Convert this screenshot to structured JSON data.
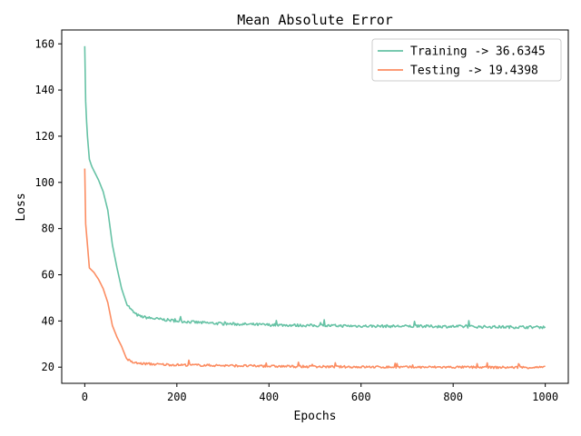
{
  "chart_data": {
    "type": "line",
    "title": "Mean Absolute Error",
    "xlabel": "Epochs",
    "ylabel": "Loss",
    "xlim": [
      -50,
      1050
    ],
    "ylim": [
      13,
      166
    ],
    "xticks": [
      0,
      200,
      400,
      600,
      800,
      1000
    ],
    "yticks": [
      20,
      40,
      60,
      80,
      100,
      120,
      140,
      160
    ],
    "grid": false,
    "legend_position": "top-right",
    "series": [
      {
        "name": "Training -> 36.6345",
        "color": "#66c2a5",
        "noise": 0.6,
        "x": [
          0,
          2,
          5,
          10,
          15,
          20,
          30,
          40,
          50,
          60,
          70,
          80,
          90,
          100,
          110,
          120,
          140,
          160,
          200,
          250,
          300,
          400,
          500,
          600,
          700,
          800,
          900,
          1000
        ],
        "y": [
          159,
          135,
          122,
          110,
          107,
          105,
          101,
          96,
          88,
          73,
          63,
          54,
          48,
          45,
          43,
          42,
          41.3,
          40.8,
          40.0,
          39.3,
          38.8,
          38.3,
          38.0,
          37.8,
          37.7,
          37.6,
          37.4,
          37.3
        ]
      },
      {
        "name": "Testing -> 19.4398",
        "color": "#fc8d62",
        "noise": 0.5,
        "x": [
          0,
          2,
          5,
          10,
          15,
          20,
          30,
          40,
          50,
          60,
          70,
          80,
          90,
          100,
          110,
          120,
          140,
          160,
          200,
          300,
          400,
          500,
          600,
          700,
          800,
          900,
          1000
        ],
        "y": [
          106,
          82,
          75,
          63,
          62,
          61,
          58,
          54,
          48,
          38,
          33,
          29,
          24,
          22.3,
          21.8,
          21.6,
          21.4,
          21.2,
          21.0,
          20.7,
          20.4,
          20.2,
          20.1,
          20.0,
          20.0,
          19.9,
          19.9
        ]
      }
    ]
  }
}
